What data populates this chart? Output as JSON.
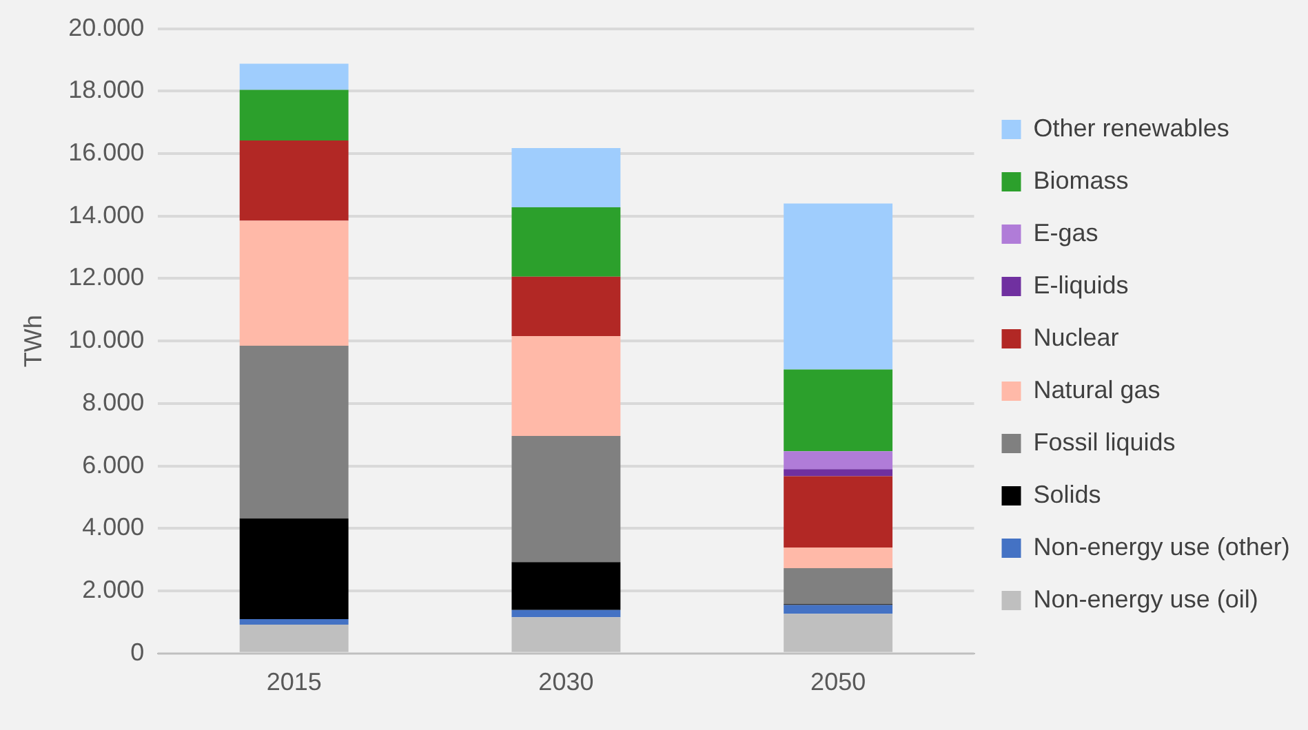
{
  "chart_data": {
    "type": "bar",
    "stacked": true,
    "ylabel": "TWh",
    "categories": [
      "2015",
      "2030",
      "2050"
    ],
    "series": [
      {
        "name": "Non-energy use (oil)",
        "color": "#bfbfbf",
        "values": [
          920,
          1160,
          1270
        ]
      },
      {
        "name": "Non-energy use (other)",
        "color": "#4472c4",
        "values": [
          180,
          230,
          280
        ]
      },
      {
        "name": "Solids",
        "color": "#000000",
        "values": [
          3220,
          1530,
          30
        ]
      },
      {
        "name": "Fossil liquids",
        "color": "#808080",
        "values": [
          5530,
          4040,
          1150
        ]
      },
      {
        "name": "Natural gas",
        "color": "#ffb9a8",
        "values": [
          4000,
          3200,
          660
        ]
      },
      {
        "name": "Nuclear",
        "color": "#b22825",
        "values": [
          2570,
          1900,
          2280
        ]
      },
      {
        "name": "E-liquids",
        "color": "#7030a0",
        "values": [
          0,
          0,
          230
        ]
      },
      {
        "name": "E-gas",
        "color": "#b07cd8",
        "values": [
          0,
          0,
          570
        ]
      },
      {
        "name": "Biomass",
        "color": "#2ca02c",
        "values": [
          1620,
          2220,
          2620
        ]
      },
      {
        "name": "Other renewables",
        "color": "#9fcdfd",
        "values": [
          840,
          1900,
          5310
        ]
      }
    ],
    "ylim": [
      0,
      20000
    ],
    "yticks": [
      {
        "value": 0,
        "label": "0"
      },
      {
        "value": 2000,
        "label": "2.000"
      },
      {
        "value": 4000,
        "label": "4.000"
      },
      {
        "value": 6000,
        "label": "6.000"
      },
      {
        "value": 8000,
        "label": "8.000"
      },
      {
        "value": 10000,
        "label": "10.000"
      },
      {
        "value": 12000,
        "label": "12.000"
      },
      {
        "value": 14000,
        "label": "14.000"
      },
      {
        "value": 16000,
        "label": "16.000"
      },
      {
        "value": 18000,
        "label": "18.000"
      },
      {
        "value": 20000,
        "label": "20.000"
      }
    ],
    "grid": "y",
    "legend": "right"
  }
}
